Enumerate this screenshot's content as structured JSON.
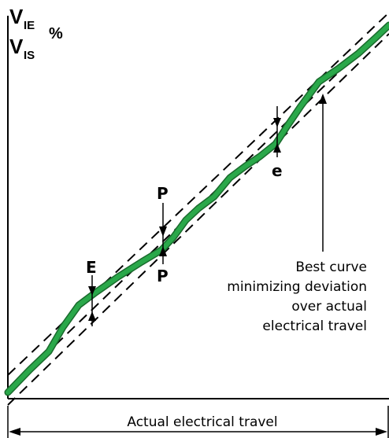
{
  "y_axis": {
    "label_line1": "V",
    "label_line1_sub": "IE",
    "label_percent": "%",
    "label_line2": "V",
    "label_line2_sub": "IS"
  },
  "x_axis": {
    "label": "Actual electrical travel"
  },
  "markers": {
    "P_top": "P",
    "P_bottom": "P",
    "E": "E",
    "e": "e"
  },
  "annotation": {
    "line1": "Best curve",
    "line2": "minimizing deviation",
    "line3": "over actual",
    "line4": "electrical travel"
  },
  "colors": {
    "curve": "#2aa84a",
    "curve_outline": "#1a6b2d",
    "lines": "#000000",
    "background": "#ffffff"
  }
}
